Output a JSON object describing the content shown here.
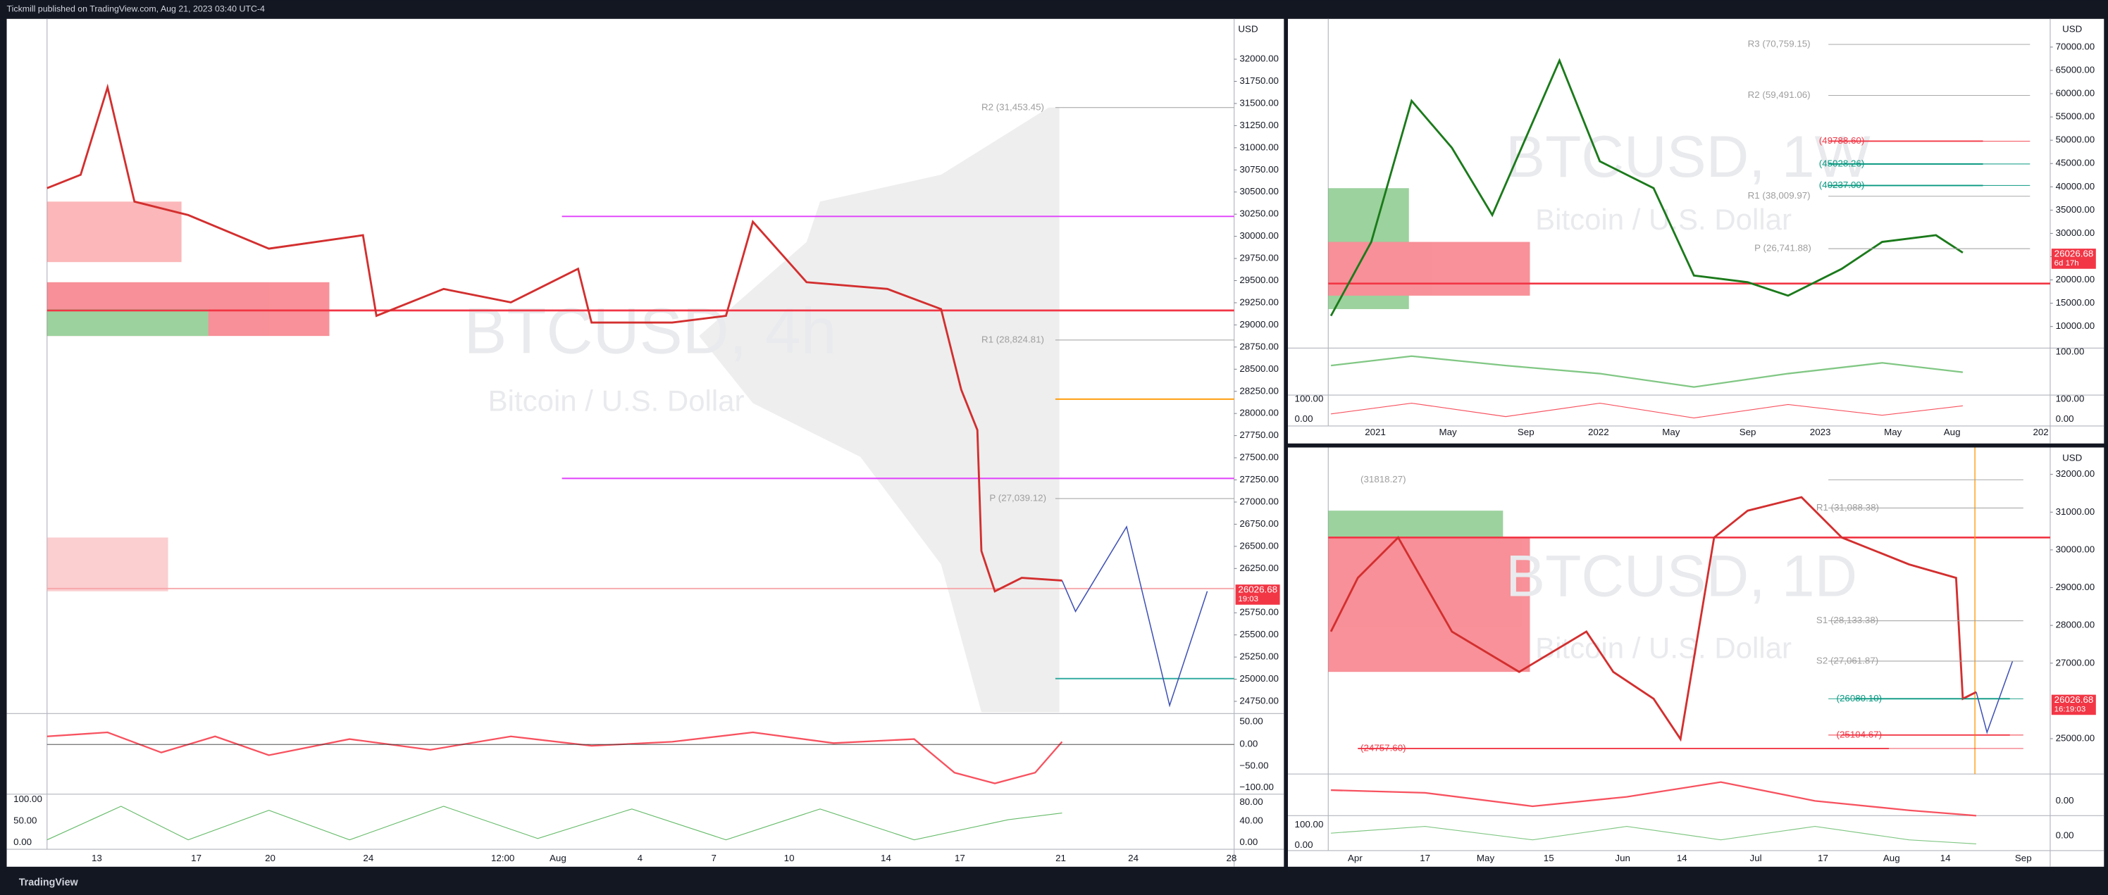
{
  "header": {
    "text": "Tickmill published on TradingView.com, Aug 21, 2023 03:40 UTC-4"
  },
  "footer": {
    "brand": "TradingView"
  },
  "panes": [
    {
      "symbol": "BTCUSD, 4h",
      "description": "Bitcoin / U.S. Dollar",
      "currency": "USD",
      "price_labels": [
        "32000.00",
        "31750.00",
        "31500.00",
        "31250.00",
        "31000.00",
        "30750.00",
        "30500.00",
        "30250.00",
        "30000.00",
        "29750.00",
        "29500.00",
        "29250.00",
        "29000.00",
        "28750.00",
        "28500.00",
        "28250.00",
        "28000.00",
        "27750.00",
        "27500.00",
        "27250.00",
        "27000.00",
        "26750.00",
        "26500.00",
        "26250.00",
        "25750.00",
        "25500.00",
        "25250.00",
        "25000.00",
        "24750.00"
      ],
      "last_price": "26026.68",
      "countdown": "19:03",
      "time_labels": [
        "13",
        "17",
        "20",
        "24",
        "12:00",
        "Aug",
        "4",
        "7",
        "10",
        "14",
        "17",
        "21",
        "24",
        "28"
      ],
      "levels": [
        {
          "label": "R2 (31,453.45)",
          "color": "#9e9e9e"
        },
        {
          "label": "R1 (28,824.81)",
          "color": "#9e9e9e"
        },
        {
          "label": "P (27,039.12)",
          "color": "#9e9e9e"
        }
      ],
      "osc1_labels": [
        "50.00",
        "0.00",
        "−50.00",
        "−100.00"
      ],
      "osc2_labels": [
        "80.00",
        "40.00",
        "0.00"
      ],
      "osc2_left_labels": [
        "100.00",
        "50.00",
        "0.00"
      ]
    },
    {
      "symbol": "BTCUSD, 1W",
      "description": "Bitcoin / U.S. Dollar",
      "currency": "USD",
      "price_labels": [
        "70000.00",
        "65000.00",
        "60000.00",
        "55000.00",
        "50000.00",
        "45000.00",
        "40000.00",
        "35000.00",
        "30000.00",
        "25000.00",
        "20000.00",
        "15000.00",
        "10000.00"
      ],
      "last_price": "26026.68",
      "countdown": "6d 17h",
      "time_labels": [
        "2021",
        "May",
        "Sep",
        "2022",
        "May",
        "Sep",
        "2023",
        "May",
        "Aug",
        "202"
      ],
      "levels": [
        {
          "label": "R3 (70,759.15)",
          "color": "#9e9e9e"
        },
        {
          "label": "R2 (59,491.06)",
          "color": "#9e9e9e"
        },
        {
          "label": "(49788.60)",
          "color": "#f23645"
        },
        {
          "label": "(45028.26)",
          "color": "#089981"
        },
        {
          "label": "(40237.00)",
          "color": "#089981"
        },
        {
          "label": "R1 (38,009.97)",
          "color": "#9e9e9e"
        },
        {
          "label": "P (26,741.88)",
          "color": "#9e9e9e"
        }
      ],
      "osc1_labels": [
        "100.00"
      ],
      "osc2_labels": [
        "100.00",
        "0.00"
      ],
      "osc2_left_labels": [
        "100.00",
        "0.00"
      ]
    },
    {
      "symbol": "BTCUSD, 1D",
      "description": "Bitcoin / U.S. Dollar",
      "currency": "USD",
      "price_labels": [
        "32000.00",
        "31000.00",
        "30000.00",
        "29000.00",
        "28000.00",
        "27000.00",
        "25000.00"
      ],
      "last_price": "26026.68",
      "countdown": "16:19:03",
      "time_labels": [
        "Apr",
        "17",
        "May",
        "15",
        "Jun",
        "14",
        "Jul",
        "17",
        "Aug",
        "14",
        "Sep"
      ],
      "levels": [
        {
          "label": "(31818.27)",
          "color": "#9e9e9e"
        },
        {
          "label": "R1 (31,088.38)",
          "color": "#9e9e9e"
        },
        {
          "label": "S1 (28,133.38)",
          "color": "#9e9e9e"
        },
        {
          "label": "S2 (27,061.87)",
          "color": "#9e9e9e"
        },
        {
          "label": "(26080.10)",
          "color": "#089981"
        },
        {
          "label": "(25104.67)",
          "color": "#f23645"
        },
        {
          "label": "(24757.60)",
          "color": "#f23645"
        }
      ],
      "osc1_labels": [
        "0.00"
      ],
      "osc2_labels": [
        "0.00"
      ],
      "osc2_left_labels": [
        "100.00",
        "0.00"
      ]
    }
  ]
}
